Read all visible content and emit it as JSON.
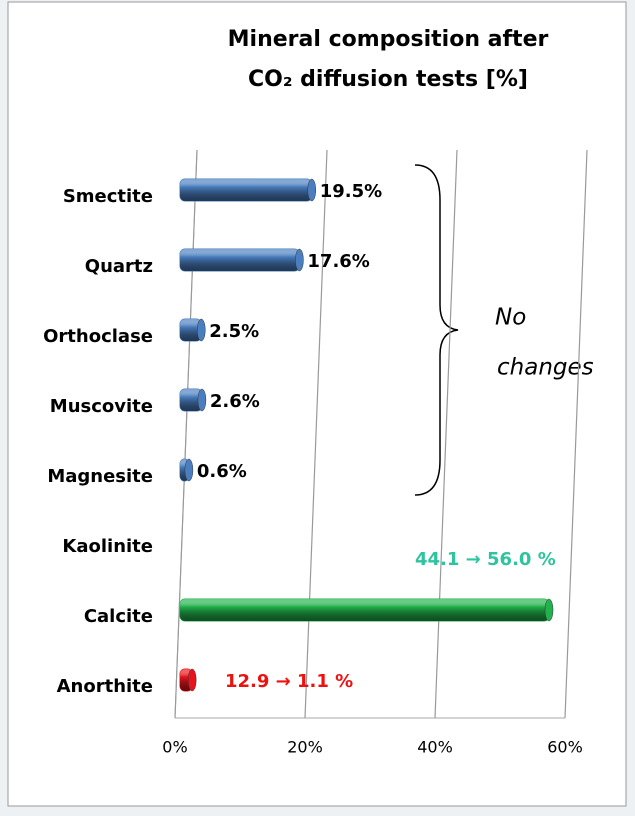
{
  "chart_data": {
    "type": "bar",
    "orientation": "horizontal",
    "title_lines": [
      "Mineral composition after",
      "CO₂ diffusion tests [%]"
    ],
    "categories": [
      "Smectite",
      "Quartz",
      "Orthoclase",
      "Muscovite",
      "Magnesite",
      "Kaolinite",
      "Calcite",
      "Anorthite"
    ],
    "values": [
      19.5,
      17.6,
      2.5,
      2.6,
      0.6,
      null,
      56.0,
      1.1
    ],
    "value_labels": [
      "19.5%",
      "17.6%",
      "2.5%",
      "2.6%",
      "0.6%",
      null,
      "44.1 → 56.0 %",
      "12.9 → 1.1 %"
    ],
    "colors": [
      "#4a7ebf",
      "#4a7ebf",
      "#4a7ebf",
      "#4a7ebf",
      "#4a7ebf",
      "#4a7ebf",
      "#22b14c",
      "#e8141c"
    ],
    "label_colors": [
      "#000000",
      "#000000",
      "#000000",
      "#000000",
      "#000000",
      "#000000",
      "#2ec4a0",
      "#ee1111"
    ],
    "xlim": [
      0,
      60
    ],
    "xticks": [
      {
        "value": 0,
        "label": "0%"
      },
      {
        "value": 20,
        "label": "20%"
      },
      {
        "value": 40,
        "label": "40%"
      },
      {
        "value": 60,
        "label": "60%"
      }
    ],
    "grid": true,
    "annotation_lines": [
      "No",
      "changes"
    ]
  }
}
